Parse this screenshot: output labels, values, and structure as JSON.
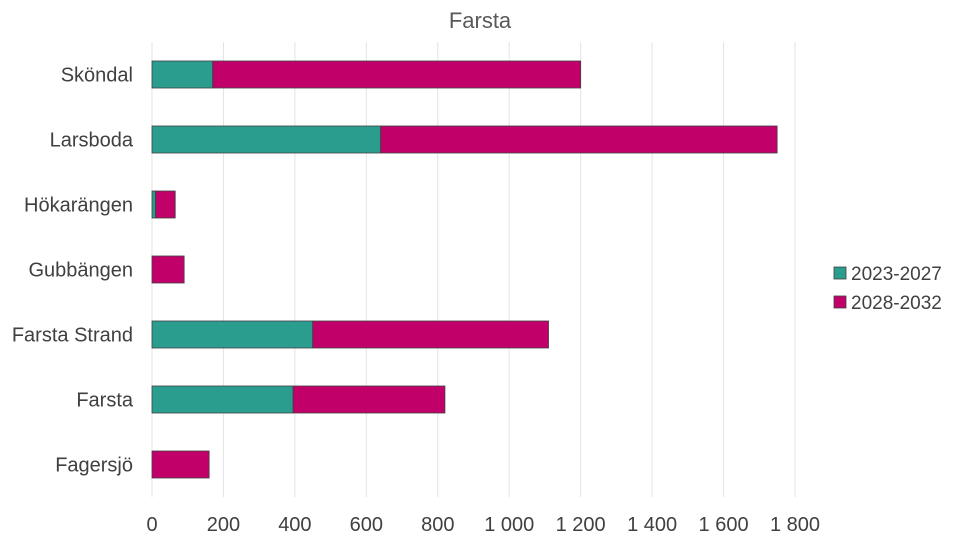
{
  "chart_data": {
    "type": "bar",
    "orientation": "horizontal",
    "stacked": true,
    "title": "Farsta",
    "categories": [
      "Sköndal",
      "Larsboda",
      "Hökarängen",
      "Gubbängen",
      "Farsta Strand",
      "Farsta",
      "Fagersjö"
    ],
    "series": [
      {
        "name": "2023-2027",
        "color": "#2a9d8f",
        "values": [
          170,
          640,
          10,
          0,
          450,
          395,
          0
        ]
      },
      {
        "name": "2028-2032",
        "color": "#c2006a",
        "values": [
          1030,
          1110,
          55,
          90,
          660,
          425,
          160
        ]
      }
    ],
    "xlim": [
      0,
      1800
    ],
    "xticks": [
      "0",
      "200",
      "400",
      "600",
      "800",
      "1 000",
      "1 200",
      "1 400",
      "1 600",
      "1 800"
    ],
    "grid": "vertical",
    "legend_position": "right"
  }
}
